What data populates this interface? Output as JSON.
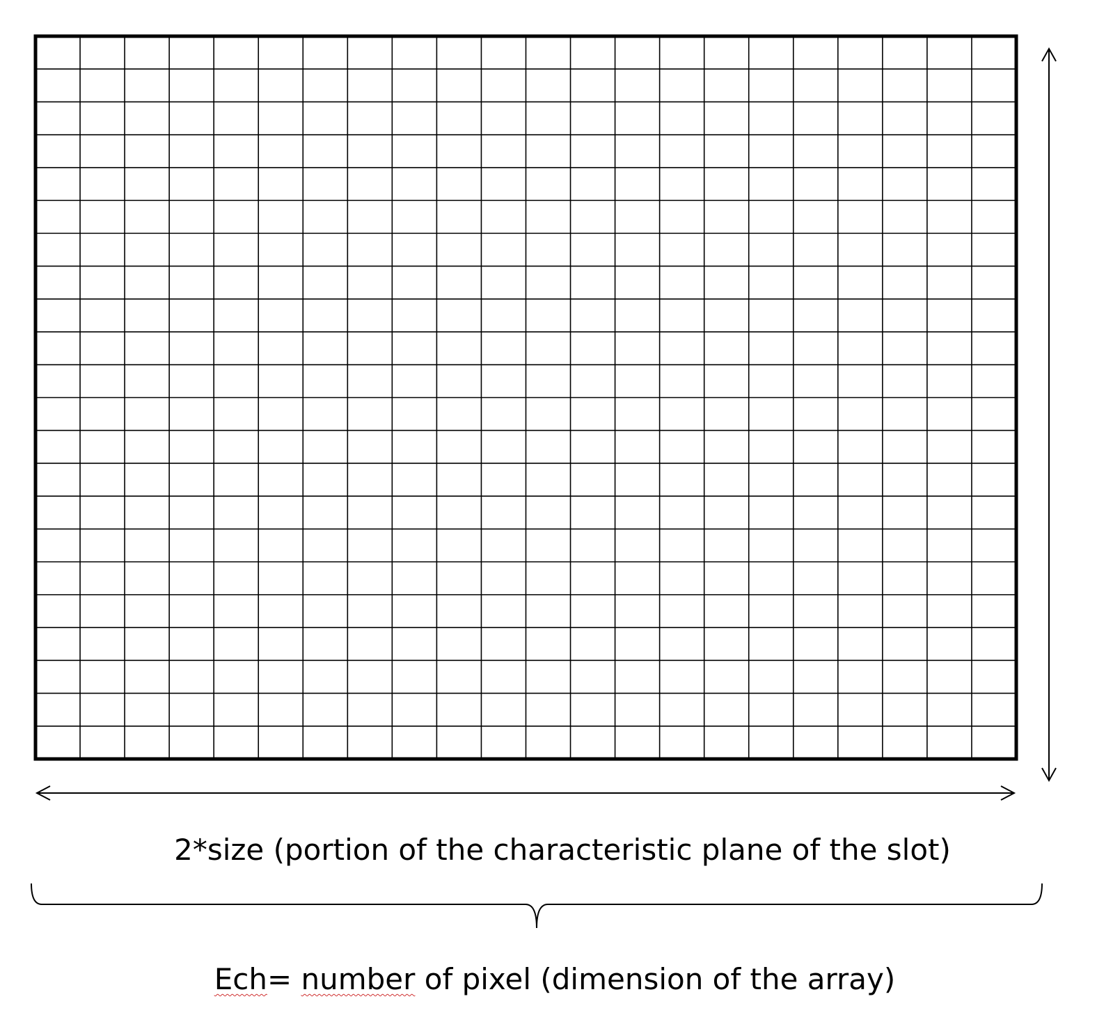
{
  "diagram": {
    "grid": {
      "columns": 22,
      "rows": 22,
      "line_color": "#000000"
    },
    "labels": {
      "horizontal_dimension": "2*size (portion of the characteristic plane of the slot)",
      "array_dimension_prefix": "",
      "array_dimension_term_1": "Ech",
      "array_dimension_sep": "= ",
      "array_dimension_term_2": "number",
      "array_dimension_suffix": " of pixel (dimension of the array)"
    },
    "spellcheck_underline_color": "#d03030"
  }
}
